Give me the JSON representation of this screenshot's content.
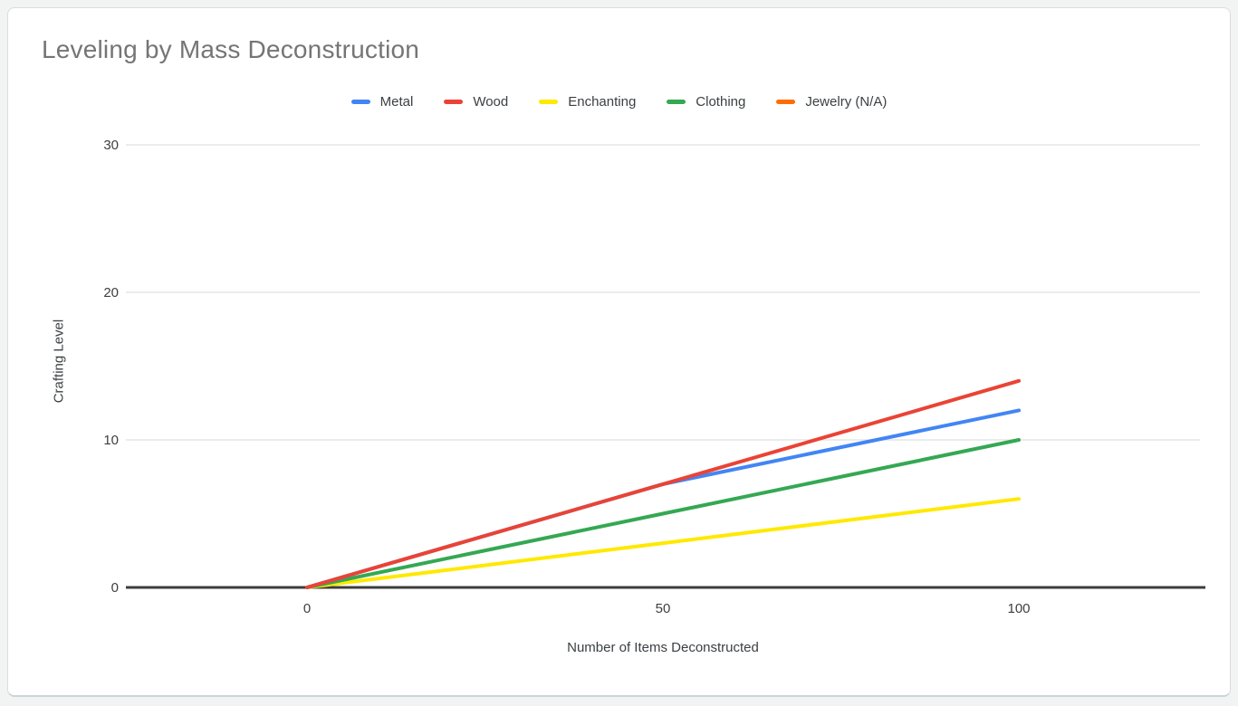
{
  "page": {
    "background_color": "#f2f4f4",
    "card_background": "#ffffff",
    "card_border_color": "#dadce0"
  },
  "chart_data": {
    "type": "line",
    "title": "Leveling by Mass Deconstruction",
    "title_color": "#757575",
    "xlabel": "Number of Items Deconstructed",
    "ylabel": "Crafting Level",
    "x": [
      0,
      50,
      100
    ],
    "series": [
      {
        "name": "Metal",
        "color": "#4285F4",
        "values": [
          0,
          7,
          12
        ]
      },
      {
        "name": "Wood",
        "color": "#EA4335",
        "values": [
          0,
          7,
          14
        ]
      },
      {
        "name": "Enchanting",
        "color": "#FFE900",
        "values": [
          0,
          3,
          6
        ]
      },
      {
        "name": "Clothing",
        "color": "#34A853",
        "values": [
          0,
          5,
          10
        ]
      },
      {
        "name": "Jewelry (N/A)",
        "color": "#FF6D01",
        "values": []
      }
    ],
    "x_ticks": [
      0,
      50,
      100
    ],
    "y_ticks": [
      0,
      10,
      20,
      30
    ],
    "xlim": [
      0,
      100
    ],
    "ylim": [
      0,
      30
    ],
    "legend_position": "top-center",
    "grid": "horizontal",
    "gridline_color": "#e6e6e6",
    "baseline_color": "#3d3d3d",
    "axis_text_color": "#3c4043"
  }
}
